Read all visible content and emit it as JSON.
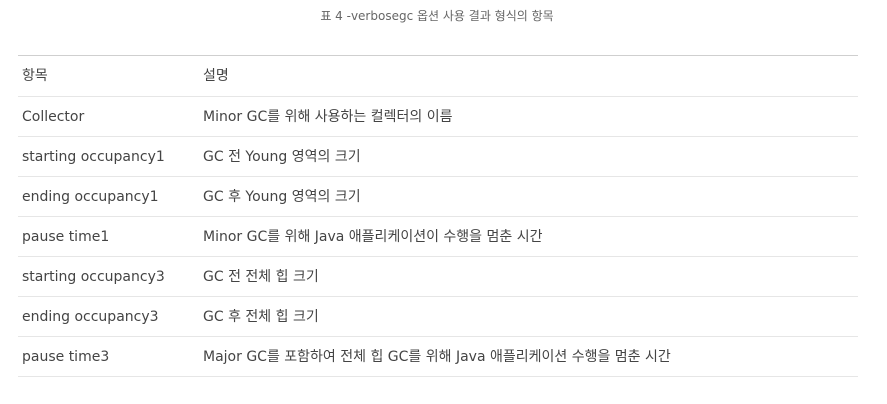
{
  "caption": "표 4 -verbosegc 옵션 사용 결과 형식의 항목",
  "table": {
    "headers": {
      "item": "항목",
      "description": "설명"
    },
    "rows": [
      {
        "item": "Collector",
        "description": "Minor GC를 위해 사용하는 컬렉터의 이름"
      },
      {
        "item": "starting occupancy1",
        "description": "GC 전 Young 영역의 크기"
      },
      {
        "item": "ending occupancy1",
        "description": "GC 후 Young 영역의 크기"
      },
      {
        "item": "pause time1",
        "description": "Minor GC를 위해 Java 애플리케이션이 수행을 멈춘 시간"
      },
      {
        "item": "starting occupancy3",
        "description": "GC 전 전체 힙 크기"
      },
      {
        "item": "ending occupancy3",
        "description": "GC 후 전체 힙 크기"
      },
      {
        "item": "pause time3",
        "description": "Major GC를 포함하여 전체 힙 GC를 위해 Java 애플리케이션 수행을 멈춘 시간"
      }
    ]
  }
}
